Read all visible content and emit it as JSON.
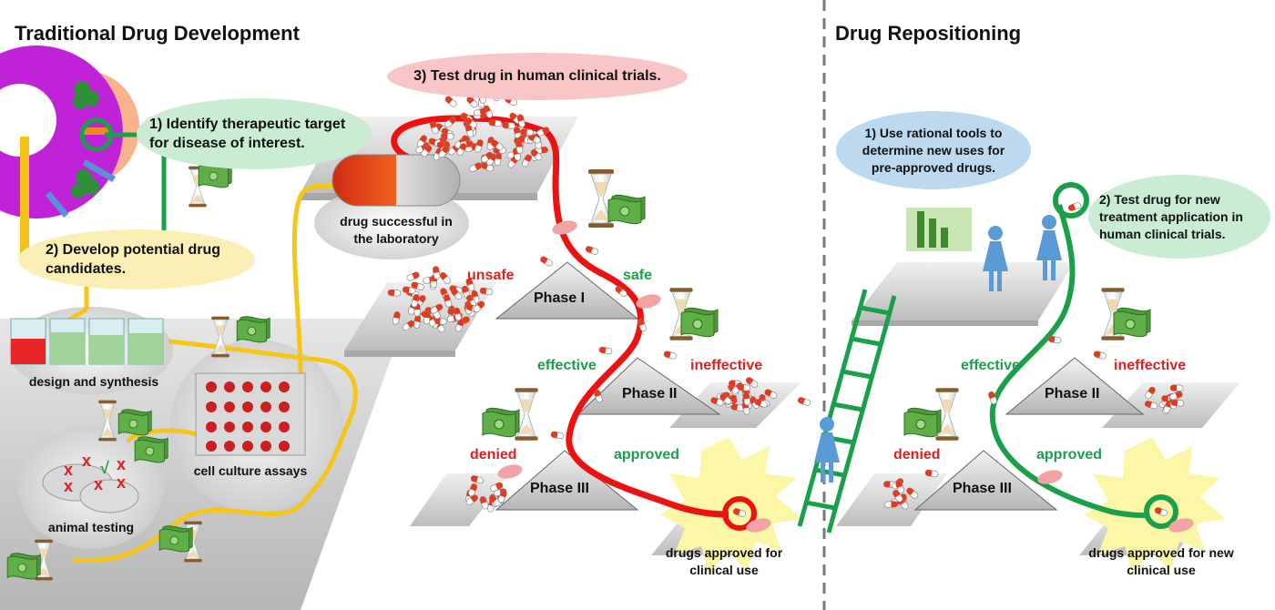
{
  "traditional": {
    "title": "Traditional Drug Development",
    "step1": "1) Identify therapeutic target for disease of interest.",
    "step2": "2) Develop potential drug candidates.",
    "step3": "3) Test drug in human clinical trials.",
    "design_synthesis": "design and synthesis",
    "cell_culture": "cell culture assays",
    "animal_testing": "animal testing",
    "lab_success": "drug successful in the laboratory",
    "phase1": "Phase I",
    "phase2": "Phase II",
    "phase3": "Phase III",
    "unsafe": "unsafe",
    "safe": "safe",
    "effective": "effective",
    "ineffective": "ineffective",
    "denied": "denied",
    "approved": "approved",
    "final": "drugs approved for clinical use"
  },
  "repositioning": {
    "title": "Drug Repositioning",
    "step1": "1) Use rational tools to determine new uses for pre-approved drugs.",
    "step2": "2) Test drug for new treatment application in human clinical trials.",
    "phase2": "Phase II",
    "phase3": "Phase III",
    "effective": "effective",
    "ineffective": "ineffective",
    "denied": "denied",
    "approved": "approved",
    "final": "drugs approved for new clinical use"
  },
  "colors": {
    "red_path": "#ee1111",
    "green_path": "#1aa04a",
    "yellow_path": "#f5c518",
    "bubble_green": "#c9ecd3",
    "bubble_yellow": "#fbefb6",
    "bubble_pink": "#f8c6c6",
    "bubble_blue": "#bcd9f0",
    "platform_gray": "#c8c8c8"
  }
}
